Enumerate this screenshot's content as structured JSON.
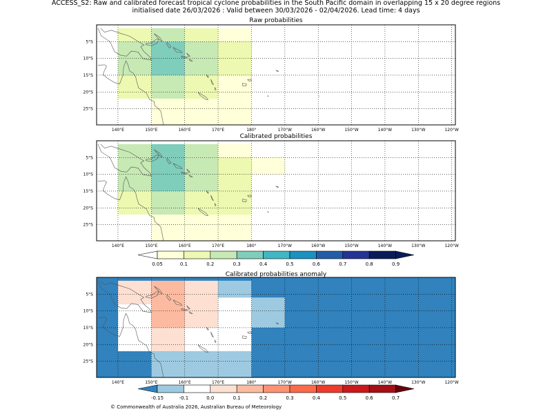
{
  "header": {
    "line1": "ACCESS_S2: Raw and calibrated forecast tropical cyclone probabilities in the South Pacific domain in overlapping 15 x 20 degree regions",
    "line2": "initialised date 26/03/2026 :  Valid between 30/03/2026 - 02/04/2026. Lead time: 4 days"
  },
  "lon_labels": [
    "140°E",
    "150°E",
    "160°E",
    "170°E",
    "180°",
    "170°W",
    "160°W",
    "150°W",
    "140°W",
    "130°W",
    "120°W"
  ],
  "lat_labels": [
    "5°S",
    "10°S",
    "15°S",
    "20°S",
    "25°S"
  ],
  "chart_data": [
    {
      "type": "heatmap",
      "title": "Raw probabilities",
      "cells": [
        {
          "lon": [
            140,
            150
          ],
          "lat": [
            -1,
            -5
          ],
          "value": 0.1
        },
        {
          "lon": [
            150,
            160
          ],
          "lat": [
            -1,
            -5
          ],
          "value": 0.2
        },
        {
          "lon": [
            160,
            170
          ],
          "lat": [
            -1,
            -5
          ],
          "value": 0.1
        },
        {
          "lon": [
            170,
            180
          ],
          "lat": [
            -1,
            -5
          ],
          "value": 0.05
        },
        {
          "lon": [
            140,
            150
          ],
          "lat": [
            -5,
            -15
          ],
          "value": 0.2
        },
        {
          "lon": [
            150,
            160
          ],
          "lat": [
            -5,
            -15
          ],
          "value": 0.3
        },
        {
          "lon": [
            160,
            170
          ],
          "lat": [
            -5,
            -15
          ],
          "value": 0.2
        },
        {
          "lon": [
            170,
            180
          ],
          "lat": [
            -5,
            -15
          ],
          "value": 0.1
        },
        {
          "lon": [
            140,
            150
          ],
          "lat": [
            -15,
            -22
          ],
          "value": 0.1
        },
        {
          "lon": [
            150,
            160
          ],
          "lat": [
            -15,
            -22
          ],
          "value": 0.2
        },
        {
          "lon": [
            160,
            170
          ],
          "lat": [
            -15,
            -22
          ],
          "value": 0.1
        },
        {
          "lon": [
            170,
            180
          ],
          "lat": [
            -15,
            -22
          ],
          "value": 0.05
        },
        {
          "lon": [
            150,
            180
          ],
          "lat": [
            -22,
            -30
          ],
          "value": 0.05
        }
      ]
    },
    {
      "type": "heatmap",
      "title": "Calibrated probabilities",
      "cells": [
        {
          "lon": [
            140,
            150
          ],
          "lat": [
            -1,
            -5
          ],
          "value": 0.2
        },
        {
          "lon": [
            150,
            160
          ],
          "lat": [
            -1,
            -5
          ],
          "value": 0.3
        },
        {
          "lon": [
            160,
            170
          ],
          "lat": [
            -1,
            -5
          ],
          "value": 0.2
        },
        {
          "lon": [
            170,
            180
          ],
          "lat": [
            -1,
            -5
          ],
          "value": 0.05
        },
        {
          "lon": [
            140,
            150
          ],
          "lat": [
            -5,
            -15
          ],
          "value": 0.2
        },
        {
          "lon": [
            150,
            160
          ],
          "lat": [
            -5,
            -15
          ],
          "value": 0.3
        },
        {
          "lon": [
            160,
            170
          ],
          "lat": [
            -5,
            -15
          ],
          "value": 0.2
        },
        {
          "lon": [
            170,
            180
          ],
          "lat": [
            -5,
            -15
          ],
          "value": 0.1
        },
        {
          "lon": [
            180,
            190
          ],
          "lat": [
            -5,
            -10
          ],
          "value": 0.05
        },
        {
          "lon": [
            140,
            150
          ],
          "lat": [
            -15,
            -22
          ],
          "value": 0.1
        },
        {
          "lon": [
            150,
            160
          ],
          "lat": [
            -15,
            -22
          ],
          "value": 0.2
        },
        {
          "lon": [
            160,
            180
          ],
          "lat": [
            -15,
            -22
          ],
          "value": 0.1
        },
        {
          "lon": [
            150,
            180
          ],
          "lat": [
            -22,
            -30
          ],
          "value": 0.05
        }
      ]
    },
    {
      "type": "heatmap",
      "title": "Calibrated probabilities anomaly",
      "background_value": -0.15,
      "cells": [
        {
          "lon": [
            140,
            150
          ],
          "lat": [
            -1,
            -8
          ],
          "value": 0.05
        },
        {
          "lon": [
            150,
            160
          ],
          "lat": [
            -1,
            -15
          ],
          "value": 0.15
        },
        {
          "lon": [
            160,
            170
          ],
          "lat": [
            -1,
            -15
          ],
          "value": 0.05
        },
        {
          "lon": [
            170,
            180
          ],
          "lat": [
            -1,
            -6
          ],
          "value": -0.1
        },
        {
          "lon": [
            170,
            180
          ],
          "lat": [
            -6,
            -22
          ],
          "value": 0.0
        },
        {
          "lon": [
            140,
            150
          ],
          "lat": [
            -8,
            -22
          ],
          "value": 0.0
        },
        {
          "lon": [
            150,
            160
          ],
          "lat": [
            -15,
            -22
          ],
          "value": 0.05
        },
        {
          "lon": [
            160,
            170
          ],
          "lat": [
            -15,
            -22
          ],
          "value": 0.0
        },
        {
          "lon": [
            180,
            190
          ],
          "lat": [
            -6,
            -15
          ],
          "value": -0.1
        },
        {
          "lon": [
            150,
            180
          ],
          "lat": [
            -22,
            -30
          ],
          "value": -0.1
        }
      ]
    }
  ],
  "colorbars": {
    "probability": {
      "labels": [
        "0.05",
        "0.1",
        "0.2",
        "0.3",
        "0.4",
        "0.5",
        "0.6",
        "0.7",
        "0.8",
        "0.9"
      ],
      "colors": [
        "#ffffd9",
        "#edf8b1",
        "#c7e9b4",
        "#7fcdbb",
        "#41b6c4",
        "#1d91c0",
        "#225ea8",
        "#253494",
        "#081d58"
      ],
      "under_color": "#ffffff",
      "over_color": "#081d58"
    },
    "anomaly": {
      "labels": [
        "-0.15",
        "-0.1",
        "0.0",
        "0.1",
        "0.2",
        "0.3",
        "0.4",
        "0.5",
        "0.6",
        "0.7"
      ],
      "colors": [
        "#9ecae1",
        "#ffffff",
        "#fee0d2",
        "#fcbba1",
        "#fc9272",
        "#fb6a4a",
        "#ef3b2c",
        "#cb181d",
        "#a50f15"
      ],
      "under_color": "#3182bd",
      "over_color": "#67000d"
    }
  },
  "colors": {
    "p005": "#ffffd9",
    "p01": "#edf8b1",
    "p02": "#c7e9b4",
    "p03": "#7fcdbb",
    "a_m015": "#3182bd",
    "a_m01": "#9ecae1",
    "a_0": "#ffffff",
    "a_01": "#fee0d2",
    "a_02": "#fcbba1"
  },
  "footer": "© Commonwealth of Australia 2026, Australian Bureau of Meteorology"
}
